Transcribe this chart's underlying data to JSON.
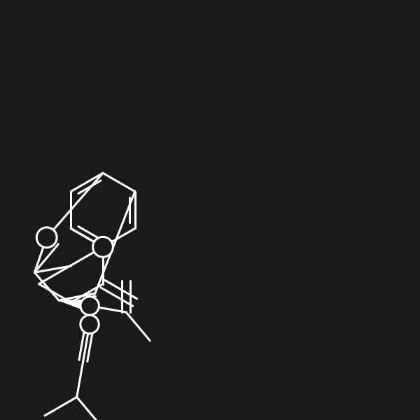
{
  "bg": "#1a1a1a",
  "lc": "#ffffff",
  "lw": 2.2,
  "fig_w": 6.0,
  "fig_h": 6.0,
  "dpi": 100,
  "bl": 0.088
}
